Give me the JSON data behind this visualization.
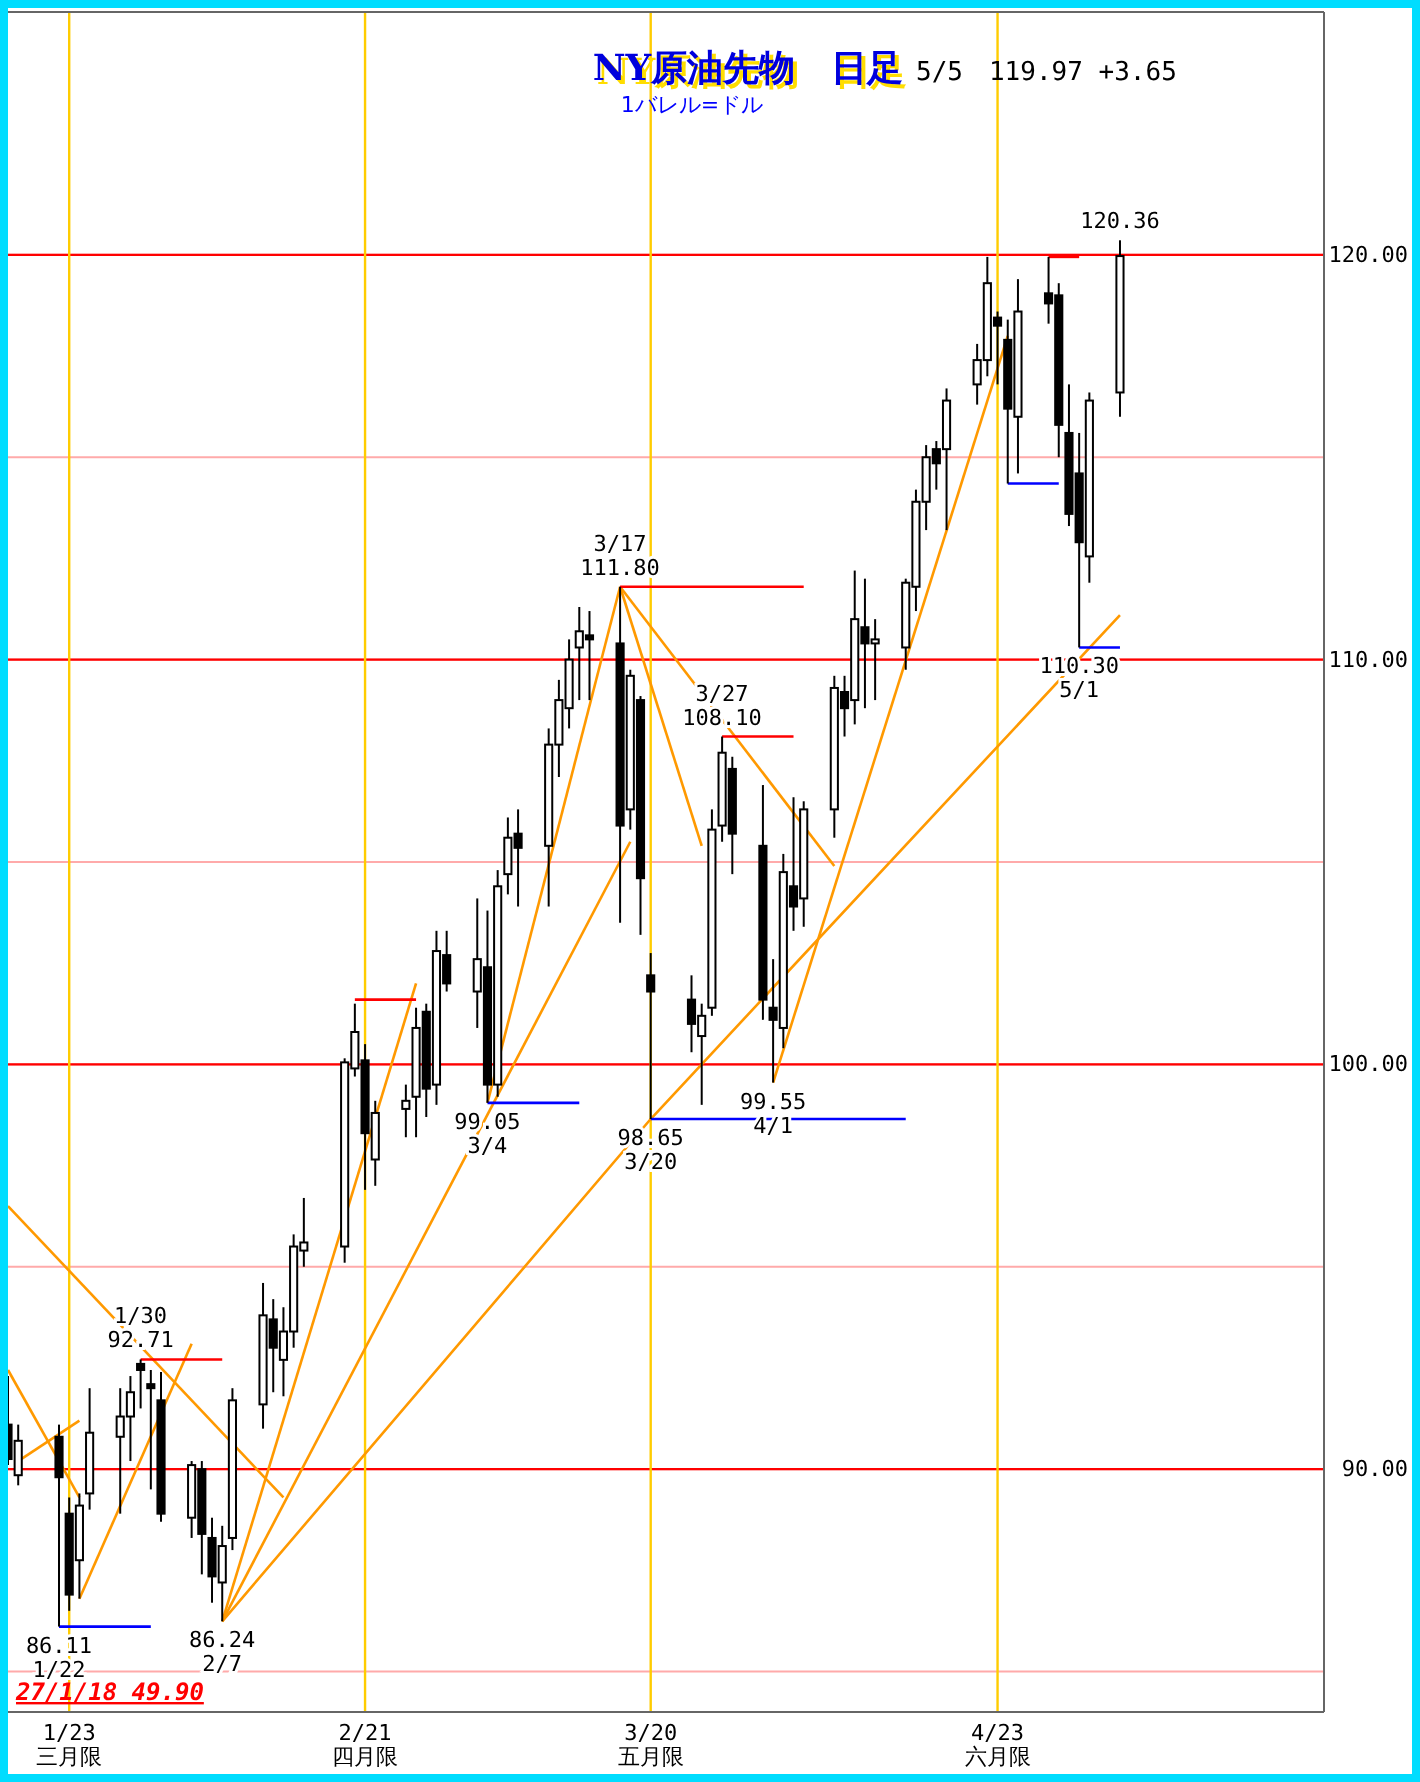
{
  "chart_data": {
    "type": "candlestick",
    "title": "NY原油先物　日足",
    "subtitle": "1バレル=ドル",
    "color": "#000000",
    "x": [
      "--01-17",
      "--01-18",
      "--01-22",
      "--01-23",
      "--01-24",
      "--01-25",
      "--01-28",
      "--01-29",
      "--01-30",
      "--01-31",
      "--02-01",
      "--02-04",
      "--02-05",
      "--02-06",
      "--02-07",
      "--02-08",
      "--02-11",
      "--02-12",
      "--02-13",
      "--02-14",
      "--02-15",
      "--02-19",
      "--02-20",
      "--02-21",
      "--02-22",
      "--02-25",
      "--02-26",
      "--02-27",
      "--02-28",
      "--02-29",
      "--03-03",
      "--03-04",
      "--03-05",
      "--03-06",
      "--03-07",
      "--03-10",
      "--03-11",
      "--03-12",
      "--03-13",
      "--03-14",
      "--03-17",
      "--03-18",
      "--03-19",
      "--03-20",
      "--03-24",
      "--03-25",
      "--03-26",
      "--03-27",
      "--03-28",
      "--03-31",
      "--04-01",
      "--04-02",
      "--04-03",
      "--04-04",
      "--04-07",
      "--04-08",
      "--04-09",
      "--04-10",
      "--04-11",
      "--04-14",
      "--04-15",
      "--04-16",
      "--04-17",
      "--04-18",
      "--04-21",
      "--04-22",
      "--04-23",
      "--04-24",
      "--04-25",
      "--04-28",
      "--04-29",
      "--04-30",
      "--05-01",
      "--05-02",
      "--05-05"
    ],
    "ohlc": [
      [
        91.1,
        92.3,
        90.1,
        90.25
      ],
      [
        89.85,
        91.1,
        89.6,
        90.7
      ],
      [
        90.8,
        91.1,
        86.11,
        89.8
      ],
      [
        88.9,
        89.3,
        86.5,
        86.9
      ],
      [
        87.75,
        89.4,
        86.8,
        89.1
      ],
      [
        89.4,
        92.0,
        89.0,
        90.9
      ],
      [
        90.8,
        92.0,
        88.9,
        91.3
      ],
      [
        91.3,
        92.3,
        90.2,
        91.9
      ],
      [
        92.6,
        92.71,
        91.5,
        92.45
      ],
      [
        92.1,
        92.45,
        89.5,
        92.0
      ],
      [
        91.7,
        92.4,
        88.7,
        88.9
      ],
      [
        88.8,
        90.2,
        88.3,
        90.1
      ],
      [
        90.0,
        90.2,
        87.4,
        88.4
      ],
      [
        88.3,
        88.8,
        86.7,
        87.35
      ],
      [
        87.2,
        88.6,
        86.24,
        88.1
      ],
      [
        88.3,
        92.0,
        88.0,
        91.7
      ],
      [
        91.6,
        94.6,
        91.0,
        93.8
      ],
      [
        93.7,
        94.2,
        91.9,
        93.0
      ],
      [
        92.7,
        94.0,
        91.8,
        93.4
      ],
      [
        93.4,
        95.8,
        93.0,
        95.5
      ],
      [
        95.4,
        96.7,
        95.0,
        95.6
      ],
      [
        95.5,
        100.15,
        95.1,
        100.05
      ],
      [
        99.9,
        101.5,
        99.7,
        100.8
      ],
      [
        100.1,
        100.5,
        96.9,
        98.3
      ],
      [
        97.65,
        99.1,
        97.0,
        98.8
      ],
      [
        98.9,
        99.5,
        98.2,
        99.1
      ],
      [
        99.2,
        101.4,
        98.2,
        100.9
      ],
      [
        101.3,
        101.5,
        98.7,
        99.4
      ],
      [
        99.5,
        103.3,
        99.0,
        102.8
      ],
      [
        102.7,
        103.3,
        101.8,
        102.0
      ],
      [
        101.8,
        104.1,
        100.9,
        102.6
      ],
      [
        102.4,
        103.8,
        99.05,
        99.5
      ],
      [
        99.5,
        104.8,
        99.2,
        104.4
      ],
      [
        104.7,
        106.1,
        104.2,
        105.6
      ],
      [
        105.7,
        106.3,
        103.9,
        105.35
      ],
      [
        105.4,
        108.3,
        103.9,
        107.9
      ],
      [
        107.9,
        109.5,
        107.1,
        109.0
      ],
      [
        108.8,
        110.5,
        108.3,
        110.0
      ],
      [
        110.3,
        111.3,
        109.0,
        110.7
      ],
      [
        110.6,
        111.2,
        109.0,
        110.5
      ],
      [
        110.4,
        111.8,
        103.5,
        105.9
      ],
      [
        106.3,
        109.75,
        105.8,
        109.6
      ],
      [
        109.0,
        109.1,
        103.2,
        104.6
      ],
      [
        102.2,
        102.75,
        98.65,
        101.8
      ],
      [
        101.6,
        102.2,
        100.3,
        101.0
      ],
      [
        100.7,
        101.5,
        99.0,
        101.2
      ],
      [
        101.4,
        106.3,
        101.2,
        105.8
      ],
      [
        105.9,
        108.1,
        105.5,
        107.7
      ],
      [
        107.3,
        107.6,
        104.7,
        105.7
      ],
      [
        105.4,
        106.9,
        101.1,
        101.6
      ],
      [
        101.4,
        102.6,
        99.55,
        101.1
      ],
      [
        100.9,
        105.2,
        100.4,
        104.75
      ],
      [
        104.4,
        106.6,
        103.3,
        103.9
      ],
      [
        104.1,
        106.5,
        103.4,
        106.3
      ],
      [
        106.3,
        109.6,
        105.6,
        109.3
      ],
      [
        109.2,
        109.6,
        108.1,
        108.8
      ],
      [
        109.0,
        112.2,
        108.4,
        111.0
      ],
      [
        110.8,
        112.0,
        108.8,
        110.4
      ],
      [
        110.4,
        111.0,
        109.0,
        110.5
      ],
      [
        110.3,
        112.0,
        109.75,
        111.9
      ],
      [
        111.8,
        114.2,
        111.2,
        113.9
      ],
      [
        113.9,
        115.3,
        113.2,
        115.0
      ],
      [
        115.2,
        115.4,
        114.2,
        114.85
      ],
      [
        115.2,
        116.7,
        113.2,
        116.4
      ],
      [
        116.8,
        117.8,
        116.3,
        117.4
      ],
      [
        117.4,
        119.95,
        117.0,
        119.3
      ],
      [
        118.45,
        118.6,
        116.8,
        118.25
      ],
      [
        117.9,
        118.4,
        114.35,
        116.2
      ],
      [
        116.0,
        119.4,
        114.6,
        118.6
      ],
      [
        119.05,
        119.95,
        118.3,
        118.8
      ],
      [
        119.0,
        119.3,
        115.0,
        115.8
      ],
      [
        115.6,
        116.8,
        113.3,
        113.6
      ],
      [
        114.6,
        115.6,
        110.3,
        112.9
      ],
      [
        112.55,
        116.6,
        111.9,
        116.4
      ],
      [
        116.6,
        120.36,
        116.0,
        119.97
      ]
    ],
    "series": [
      {
        "type": "line",
        "color": "#ff9900",
        "x": [
          "--01-17",
          "--02-13"
        ],
        "values": [
          96.5,
          89.3
        ]
      },
      {
        "type": "line",
        "color": "#ff9900",
        "x": [
          "--01-17",
          "--01-24"
        ],
        "values": [
          92.45,
          89.3
        ]
      },
      {
        "type": "line",
        "color": "#ff9900",
        "x": [
          "--01-18",
          "--01-24"
        ],
        "values": [
          90.2,
          91.2
        ]
      },
      {
        "type": "line",
        "color": "#ff9900",
        "x": [
          "--01-24",
          "--02-04"
        ],
        "values": [
          86.8,
          93.1
        ]
      },
      {
        "type": "line",
        "color": "#ff9900",
        "x": [
          "--02-07",
          "--02-26"
        ],
        "values": [
          86.24,
          102.0
        ]
      },
      {
        "type": "line",
        "color": "#ff9900",
        "x": [
          "--02-07",
          "--03-18"
        ],
        "values": [
          86.24,
          105.5
        ]
      },
      {
        "type": "line",
        "color": "#ff9900",
        "x": [
          "--02-07",
          "--03-20",
          "--05-05"
        ],
        "values": [
          86.24,
          98.65,
          111.1
        ]
      },
      {
        "type": "line",
        "color": "#ff9900",
        "x": [
          "--03-04",
          "--03-17"
        ],
        "values": [
          99.05,
          111.8
        ]
      },
      {
        "type": "line",
        "color": "#ff9900",
        "x": [
          "--03-17",
          "--03-25"
        ],
        "values": [
          111.8,
          105.4
        ]
      },
      {
        "type": "line",
        "color": "#ff9900",
        "x": [
          "--03-17",
          "--04-07"
        ],
        "values": [
          111.8,
          104.9
        ]
      },
      {
        "type": "line",
        "color": "#ff9900",
        "x": [
          "--04-01",
          "--04-24"
        ],
        "values": [
          99.55,
          118.0
        ]
      },
      {
        "type": "line",
        "color": "#ff0000",
        "x": [
          "--01-30",
          "--02-07"
        ],
        "values": [
          92.71,
          92.71
        ]
      },
      {
        "type": "line",
        "color": "#ff0000",
        "x": [
          "--02-20",
          "--02-26"
        ],
        "values": [
          101.6,
          101.6
        ]
      },
      {
        "type": "line",
        "color": "#ff0000",
        "x": [
          "--03-17",
          "--04-04"
        ],
        "values": [
          111.8,
          111.8
        ]
      },
      {
        "type": "line",
        "color": "#ff0000",
        "x": [
          "--03-27",
          "--04-03"
        ],
        "values": [
          108.1,
          108.1
        ]
      },
      {
        "type": "line",
        "color": "#ff0000",
        "x": [
          "--04-28",
          "--05-01"
        ],
        "values": [
          119.95,
          119.95
        ]
      },
      {
        "type": "line",
        "color": "#0000ff",
        "x": [
          "--01-22",
          "--01-31"
        ],
        "values": [
          86.11,
          86.11
        ]
      },
      {
        "type": "line",
        "color": "#0000ff",
        "x": [
          "--03-04",
          "--03-13"
        ],
        "values": [
          99.05,
          99.05
        ]
      },
      {
        "type": "line",
        "color": "#0000ff",
        "x": [
          "--03-20",
          "--04-14"
        ],
        "values": [
          98.65,
          98.65
        ]
      },
      {
        "type": "line",
        "color": "#0000ff",
        "x": [
          "--04-24",
          "--04-29"
        ],
        "values": [
          114.35,
          114.35
        ]
      },
      {
        "type": "line",
        "color": "#0000ff",
        "x": [
          "--05-01",
          "--05-05"
        ],
        "values": [
          110.3,
          110.3
        ]
      }
    ],
    "xlim": [
      "--01-17",
      "--05-25"
    ],
    "xticks": [
      {
        "value": "--01-23",
        "label": "1/23\n三月限"
      },
      {
        "value": "--02-21",
        "label": "2/21\n四月限"
      },
      {
        "value": "--03-20",
        "label": "3/20\n五月限"
      },
      {
        "value": "--04-23",
        "label": "4/23\n六月限"
      }
    ],
    "ylim": [
      84,
      126
    ],
    "yticks": [
      {
        "value": 85,
        "label": null
      },
      {
        "value": 90,
        "label": "90.00"
      },
      {
        "value": 95,
        "label": null
      },
      {
        "value": 100,
        "label": "100.00"
      },
      {
        "value": 105,
        "label": null
      },
      {
        "value": 110,
        "label": "110.00"
      },
      {
        "value": 115,
        "label": null
      },
      {
        "value": 120,
        "label": "120.00"
      }
    ],
    "grid": "y",
    "ref_lines": [
      {
        "axis": "y",
        "value": 90,
        "color": "#ff0000"
      },
      {
        "axis": "y",
        "value": 100,
        "color": "#ff0000"
      },
      {
        "axis": "y",
        "value": 110,
        "color": "#ff0000"
      },
      {
        "axis": "y",
        "value": 120,
        "color": "#ff0000"
      },
      {
        "axis": "x",
        "value": "--01-23",
        "color": "#ffcc00"
      },
      {
        "axis": "x",
        "value": "--02-21",
        "color": "#ffcc00"
      },
      {
        "axis": "x",
        "value": "--03-20",
        "color": "#ffcc00"
      },
      {
        "axis": "x",
        "value": "--04-23",
        "color": "#ffcc00"
      }
    ],
    "annotations": [
      "5/5　119.97 +3.65",
      "27/1/18 49.90",
      "120.36",
      {
        "text": "1/30\n92.71",
        "x": "--01-30",
        "y": 92.71
      },
      {
        "text": "86.11\n1/22",
        "x": "--01-22",
        "y": 86.11
      },
      {
        "text": "86.24\n2/7",
        "x": "--02-07",
        "y": 86.24
      },
      {
        "text": "99.05\n3/4",
        "x": "--03-04",
        "y": 99.05
      },
      {
        "text": "3/17\n111.80",
        "x": "--03-17",
        "y": 111.8
      },
      {
        "text": "98.65\n3/20",
        "x": "--03-20",
        "y": 98.65
      },
      {
        "text": "3/27\n108.10",
        "x": "--03-27",
        "y": 108.1
      },
      {
        "text": "99.55\n4/1",
        "x": "--04-01",
        "y": 99.55
      },
      {
        "text": "110.30\n5/1",
        "x": "--05-01",
        "y": 110.3
      }
    ]
  }
}
